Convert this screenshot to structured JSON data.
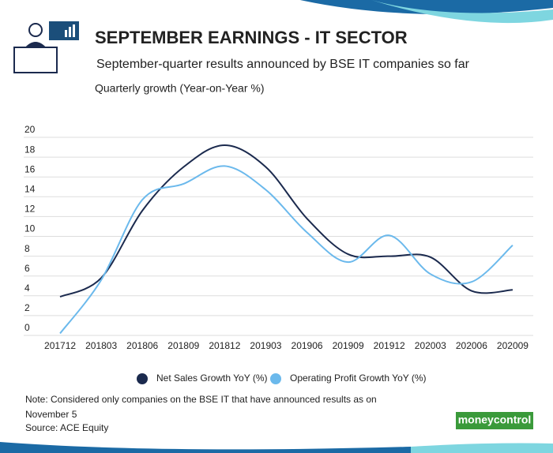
{
  "chart_data": {
    "type": "line",
    "title": "SEPTEMBER EARNINGS - IT SECTOR",
    "subtitle": "September-quarter results announced by BSE IT companies so far",
    "y_label": "Quarterly growth (Year-on-Year %)",
    "categories": [
      "201712",
      "201803",
      "201806",
      "201809",
      "201812",
      "201903",
      "201906",
      "201909",
      "201912",
      "202003",
      "202006",
      "202009"
    ],
    "series": [
      {
        "name": "Net Sales Growth YoY (%)",
        "color": "#1b2a4e",
        "values": [
          3.9,
          5.8,
          12.6,
          17,
          19.2,
          17,
          11.8,
          8.2,
          8.0,
          7.9,
          4.5,
          4.6
        ]
      },
      {
        "name": "Operating Profit Growth YoY (%)",
        "color": "#6bb9ec",
        "values": [
          0.2,
          5.6,
          13.7,
          15.3,
          17.1,
          14.7,
          10.4,
          7.4,
          10.1,
          6.2,
          5.4,
          9.1
        ]
      }
    ],
    "ylim": [
      0,
      20
    ],
    "yticks": [
      0,
      2,
      4,
      6,
      8,
      10,
      12,
      14,
      16,
      18,
      20
    ],
    "grid": true,
    "note": "Note: Considered only companies on the BSE IT that have announced results as on November 5",
    "source": "Source: ACE Equity",
    "brand": "moneycontrol"
  }
}
